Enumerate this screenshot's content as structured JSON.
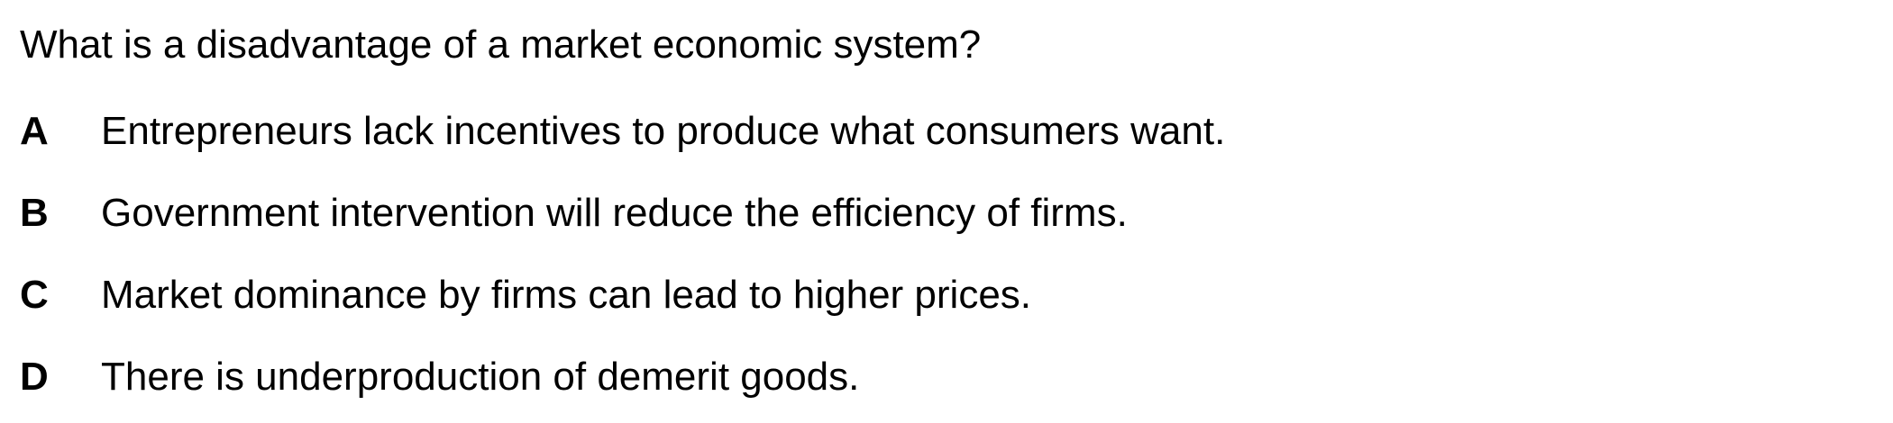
{
  "question": {
    "text": "What is a disadvantage of a market economic system?"
  },
  "options": [
    {
      "letter": "A",
      "text": "Entrepreneurs lack incentives to produce what consumers want."
    },
    {
      "letter": "B",
      "text": "Government intervention will reduce the efficiency of firms."
    },
    {
      "letter": "C",
      "text": "Market dominance by firms can lead to higher prices."
    },
    {
      "letter": "D",
      "text": "There is underproduction of demerit goods."
    }
  ]
}
